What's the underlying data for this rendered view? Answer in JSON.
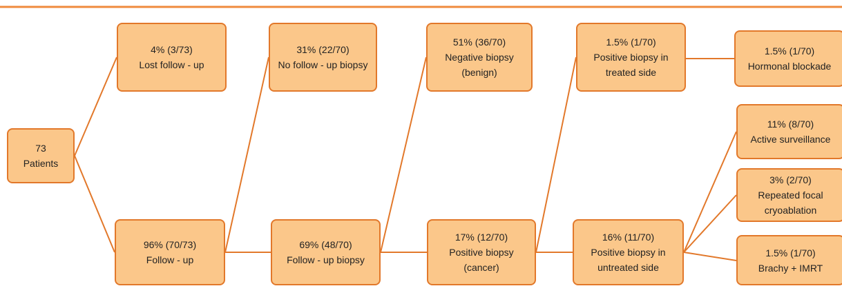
{
  "nodes": [
    {
      "lines": [
        "73",
        "Patients"
      ]
    },
    {
      "lines": [
        "4% (3/73)",
        "Lost follow - up"
      ]
    },
    {
      "lines": [
        "96% (70/73)",
        "Follow - up"
      ]
    },
    {
      "lines": [
        "31% (22/70)",
        "No follow - up biopsy"
      ]
    },
    {
      "lines": [
        "69% (48/70)",
        "Follow - up biopsy"
      ]
    },
    {
      "lines": [
        "51% (36/70)",
        "Negative biopsy",
        "(benign)"
      ]
    },
    {
      "lines": [
        "17% (12/70)",
        "Positive biopsy",
        "(cancer)"
      ]
    },
    {
      "lines": [
        "1.5% (1/70)",
        "Positive biopsy in",
        "treated side"
      ]
    },
    {
      "lines": [
        "16% (11/70)",
        "Positive biopsy in",
        "untreated side"
      ]
    },
    {
      "lines": [
        "1.5% (1/70)",
        "Hormonal blockade"
      ]
    },
    {
      "lines": [
        "11% (8/70)",
        "Active surveillance"
      ]
    },
    {
      "lines": [
        "3% (2/70)",
        "Repeated focal",
        "cryoablation"
      ]
    },
    {
      "lines": [
        "1.5% (1/70)",
        "Brachy + IMRT"
      ]
    }
  ]
}
